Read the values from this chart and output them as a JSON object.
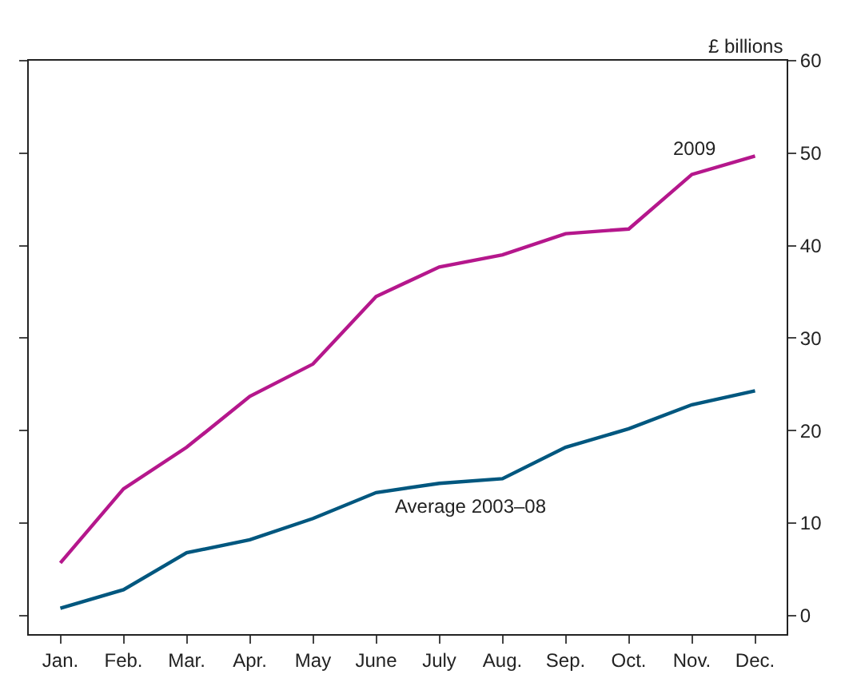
{
  "chart_data": {
    "type": "line",
    "ylabel": "£ billions",
    "categories": [
      "Jan.",
      "Feb.",
      "Mar.",
      "Apr.",
      "May",
      "June",
      "July",
      "Aug.",
      "Sep.",
      "Oct.",
      "Nov.",
      "Dec."
    ],
    "series": [
      {
        "name": "2009",
        "color": "#b5178c",
        "values": [
          5.7,
          13.7,
          18.2,
          23.7,
          27.2,
          34.5,
          37.7,
          39.0,
          41.3,
          41.8,
          47.7,
          49.7
        ]
      },
      {
        "name": "Average 2003–08",
        "color": "#00577f",
        "values": [
          0.8,
          2.8,
          6.8,
          8.2,
          10.5,
          13.3,
          14.3,
          14.8,
          18.2,
          20.2,
          22.8,
          24.3
        ]
      }
    ],
    "ylim": [
      -2,
      60
    ],
    "yticks": [
      0,
      10,
      20,
      30,
      40,
      50,
      60
    ],
    "legend": false,
    "marker": "none",
    "line_style": "solid"
  }
}
